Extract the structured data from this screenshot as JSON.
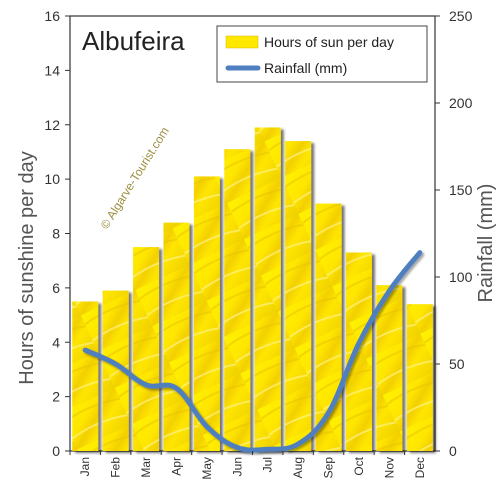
{
  "chart_data": {
    "type": "bar",
    "title": "Albufeira",
    "watermark": "© Algarve-Tourist.com",
    "categories": [
      "Jan",
      "Feb",
      "Mar",
      "Apr",
      "May",
      "Jun",
      "Jul",
      "Aug",
      "Sep",
      "Oct",
      "Nov",
      "Dec"
    ],
    "series": [
      {
        "name": "Hours of sun per day",
        "type": "bar",
        "axis": "left",
        "color": "#FFE800",
        "values": [
          5.5,
          5.9,
          7.5,
          8.4,
          10.1,
          11.1,
          11.9,
          11.4,
          9.1,
          7.3,
          6.1,
          5.4
        ]
      },
      {
        "name": "Rainfall (mm)",
        "type": "line",
        "axis": "right",
        "color": "#4F7FBF",
        "values": [
          58,
          50,
          38,
          36,
          14,
          2,
          1,
          4,
          22,
          62,
          92,
          114
        ]
      }
    ],
    "ylabel": "Hours of sunshine per day",
    "ylim": [
      0,
      16
    ],
    "yticks": [
      "0",
      "2",
      "4",
      "6",
      "8",
      "10",
      "12",
      "14",
      "16"
    ],
    "y2label": "Rainfall (mm)",
    "y2lim": [
      0,
      250
    ],
    "y2ticks": [
      "0",
      "50",
      "100",
      "150",
      "200",
      "250"
    ],
    "grid": false,
    "legend_position": "top-right"
  }
}
